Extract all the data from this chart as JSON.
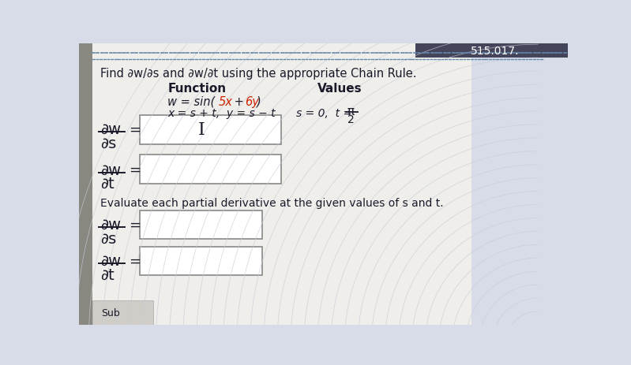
{
  "title": "Find ∂w/∂s and ∂w/∂t using the appropriate Chain Rule.",
  "function_label": "Function",
  "values_label": "Values",
  "func_w": "w = sin(",
  "func_5x": "5x",
  "func_plus": " + ",
  "func_6y": "6y",
  "func_rparen": ")",
  "func_line2": "x = s + t,  y = s − t",
  "values_line": "s = 0,  t =",
  "pi_sym": "π",
  "denom": "2",
  "num_w": "∂w",
  "den_s": "∂s",
  "den_t": "∂t",
  "evaluate_text": "Evaluate each partial derivative at the given values of s and t.",
  "bg_wave_color": "#d8dce8",
  "white_panel_color": "#f0eeea",
  "left_bar_color": "#888880",
  "text_color": "#1a1a2a",
  "red_color": "#cc2200",
  "box_color": "#ffffff",
  "box_edge_color": "#888888",
  "dot_color": "#6688aa",
  "top_bar_color": "#555566"
}
